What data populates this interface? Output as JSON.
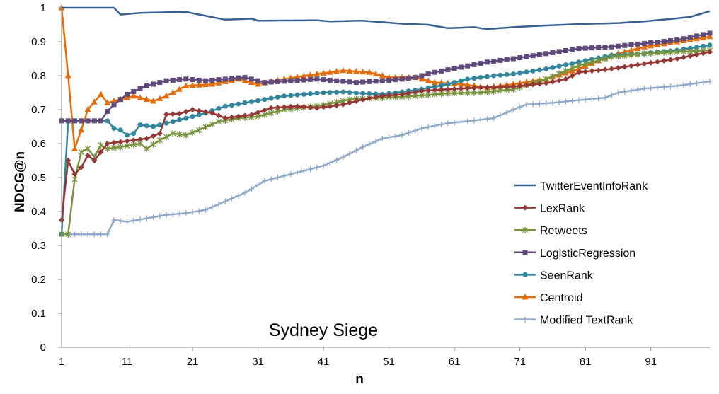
{
  "chart_data": {
    "type": "line",
    "title": "Sydney Siege",
    "xlabel": "n",
    "ylabel": "NDCG@n",
    "xlim": [
      1,
      100
    ],
    "ylim": [
      0,
      1
    ],
    "x_ticks": [
      1,
      11,
      21,
      31,
      41,
      51,
      61,
      71,
      81,
      91
    ],
    "x_tick_labels": [
      "1",
      "11",
      "21",
      "31",
      "41",
      "51",
      "61",
      "71",
      "81",
      "91"
    ],
    "y_ticks": [
      0,
      0.1,
      0.2,
      0.3,
      0.4,
      0.5,
      0.6,
      0.7,
      0.8,
      0.9,
      1
    ],
    "y_tick_labels": [
      "0",
      "0.1",
      "0.2",
      "0.3",
      "0.4",
      "0.5",
      "0.6",
      "0.7",
      "0.8",
      "0.9",
      "1"
    ],
    "grid": false,
    "legend_position": "right",
    "series": [
      {
        "name": "TwitterEventInfoRank",
        "color": "#376092",
        "marker": "none",
        "knots": [
          [
            1,
            1
          ],
          [
            9,
            1
          ],
          [
            10,
            0.98
          ],
          [
            13,
            0.985
          ],
          [
            20,
            0.988
          ],
          [
            22,
            0.98
          ],
          [
            26,
            0.965
          ],
          [
            30,
            0.968
          ],
          [
            31,
            0.962
          ],
          [
            40,
            0.963
          ],
          [
            42,
            0.96
          ],
          [
            47,
            0.962
          ],
          [
            53,
            0.953
          ],
          [
            57,
            0.95
          ],
          [
            60,
            0.94
          ],
          [
            64,
            0.943
          ],
          [
            66,
            0.937
          ],
          [
            70,
            0.943
          ],
          [
            74,
            0.947
          ],
          [
            80,
            0.952
          ],
          [
            86,
            0.955
          ],
          [
            90,
            0.96
          ],
          [
            94,
            0.967
          ],
          [
            97,
            0.973
          ],
          [
            100,
            0.99
          ]
        ]
      },
      {
        "name": "LexRank",
        "color": "#953735",
        "marker": "diamond",
        "knots": [
          [
            1,
            0.375
          ],
          [
            2,
            0.55
          ],
          [
            3,
            0.51
          ],
          [
            4,
            0.53
          ],
          [
            5,
            0.565
          ],
          [
            6,
            0.55
          ],
          [
            7,
            0.575
          ],
          [
            8,
            0.6
          ],
          [
            10,
            0.605
          ],
          [
            12,
            0.61
          ],
          [
            14,
            0.615
          ],
          [
            16,
            0.63
          ],
          [
            17,
            0.686
          ],
          [
            19,
            0.688
          ],
          [
            21,
            0.7
          ],
          [
            24,
            0.69
          ],
          [
            26,
            0.675
          ],
          [
            30,
            0.685
          ],
          [
            33,
            0.705
          ],
          [
            37,
            0.71
          ],
          [
            40,
            0.705
          ],
          [
            44,
            0.715
          ],
          [
            47,
            0.73
          ],
          [
            50,
            0.74
          ],
          [
            53,
            0.745
          ],
          [
            56,
            0.755
          ],
          [
            60,
            0.76
          ],
          [
            65,
            0.765
          ],
          [
            70,
            0.768
          ],
          [
            75,
            0.778
          ],
          [
            78,
            0.79
          ],
          [
            80,
            0.81
          ],
          [
            85,
            0.82
          ],
          [
            90,
            0.835
          ],
          [
            95,
            0.85
          ],
          [
            100,
            0.87
          ]
        ]
      },
      {
        "name": "Retweets",
        "color": "#77933C",
        "marker": "star",
        "knots": [
          [
            1,
            0.333
          ],
          [
            2,
            0.333
          ],
          [
            3,
            0.495
          ],
          [
            4,
            0.575
          ],
          [
            5,
            0.585
          ],
          [
            6,
            0.56
          ],
          [
            7,
            0.595
          ],
          [
            8,
            0.585
          ],
          [
            10,
            0.59
          ],
          [
            13,
            0.6
          ],
          [
            14,
            0.585
          ],
          [
            16,
            0.61
          ],
          [
            18,
            0.63
          ],
          [
            20,
            0.625
          ],
          [
            22,
            0.64
          ],
          [
            25,
            0.665
          ],
          [
            28,
            0.675
          ],
          [
            31,
            0.68
          ],
          [
            35,
            0.7
          ],
          [
            40,
            0.71
          ],
          [
            45,
            0.73
          ],
          [
            50,
            0.735
          ],
          [
            55,
            0.74
          ],
          [
            60,
            0.748
          ],
          [
            65,
            0.75
          ],
          [
            70,
            0.76
          ],
          [
            75,
            0.79
          ],
          [
            80,
            0.83
          ],
          [
            85,
            0.855
          ],
          [
            90,
            0.865
          ],
          [
            95,
            0.87
          ],
          [
            100,
            0.875
          ]
        ]
      },
      {
        "name": "LogisticRegression",
        "color": "#604A7B",
        "marker": "square",
        "knots": [
          [
            1,
            0.667
          ],
          [
            7,
            0.667
          ],
          [
            8,
            0.695
          ],
          [
            9,
            0.715
          ],
          [
            11,
            0.745
          ],
          [
            14,
            0.77
          ],
          [
            17,
            0.785
          ],
          [
            20,
            0.79
          ],
          [
            23,
            0.785
          ],
          [
            26,
            0.79
          ],
          [
            29,
            0.795
          ],
          [
            32,
            0.78
          ],
          [
            36,
            0.785
          ],
          [
            40,
            0.79
          ],
          [
            43,
            0.785
          ],
          [
            46,
            0.78
          ],
          [
            50,
            0.785
          ],
          [
            53,
            0.79
          ],
          [
            55,
            0.795
          ],
          [
            58,
            0.81
          ],
          [
            62,
            0.825
          ],
          [
            66,
            0.84
          ],
          [
            70,
            0.85
          ],
          [
            75,
            0.865
          ],
          [
            80,
            0.88
          ],
          [
            85,
            0.885
          ],
          [
            90,
            0.895
          ],
          [
            95,
            0.905
          ],
          [
            100,
            0.925
          ]
        ]
      },
      {
        "name": "SeenRank",
        "color": "#31859C",
        "marker": "circle",
        "knots": [
          [
            1,
            0.333
          ],
          [
            2,
            0.667
          ],
          [
            8,
            0.667
          ],
          [
            9,
            0.645
          ],
          [
            10,
            0.64
          ],
          [
            11,
            0.625
          ],
          [
            12,
            0.63
          ],
          [
            13,
            0.655
          ],
          [
            15,
            0.65
          ],
          [
            17,
            0.66
          ],
          [
            20,
            0.675
          ],
          [
            23,
            0.69
          ],
          [
            26,
            0.71
          ],
          [
            29,
            0.72
          ],
          [
            32,
            0.73
          ],
          [
            35,
            0.74
          ],
          [
            38,
            0.745
          ],
          [
            41,
            0.75
          ],
          [
            44,
            0.752
          ],
          [
            47,
            0.748
          ],
          [
            50,
            0.745
          ],
          [
            53,
            0.752
          ],
          [
            56,
            0.76
          ],
          [
            60,
            0.775
          ],
          [
            63,
            0.79
          ],
          [
            67,
            0.8
          ],
          [
            70,
            0.805
          ],
          [
            75,
            0.82
          ],
          [
            80,
            0.84
          ],
          [
            85,
            0.86
          ],
          [
            90,
            0.865
          ],
          [
            95,
            0.875
          ],
          [
            100,
            0.89
          ]
        ]
      },
      {
        "name": "Centroid",
        "color": "#E46C0A",
        "marker": "triangle",
        "knots": [
          [
            1,
            1
          ],
          [
            2,
            0.8
          ],
          [
            3,
            0.585
          ],
          [
            4,
            0.64
          ],
          [
            5,
            0.7
          ],
          [
            7,
            0.745
          ],
          [
            8,
            0.72
          ],
          [
            10,
            0.73
          ],
          [
            12,
            0.74
          ],
          [
            15,
            0.725
          ],
          [
            17,
            0.74
          ],
          [
            20,
            0.77
          ],
          [
            24,
            0.775
          ],
          [
            28,
            0.79
          ],
          [
            31,
            0.775
          ],
          [
            35,
            0.79
          ],
          [
            40,
            0.805
          ],
          [
            44,
            0.815
          ],
          [
            48,
            0.81
          ],
          [
            51,
            0.795
          ],
          [
            55,
            0.795
          ],
          [
            58,
            0.78
          ],
          [
            62,
            0.775
          ],
          [
            66,
            0.765
          ],
          [
            70,
            0.775
          ],
          [
            75,
            0.79
          ],
          [
            80,
            0.82
          ],
          [
            85,
            0.86
          ],
          [
            90,
            0.885
          ],
          [
            95,
            0.9
          ],
          [
            100,
            0.915
          ]
        ]
      },
      {
        "name": "Modified TextRank",
        "color": "#8EA9C9",
        "marker": "plus",
        "knots": [
          [
            1,
            0.333
          ],
          [
            8,
            0.333
          ],
          [
            9,
            0.375
          ],
          [
            11,
            0.37
          ],
          [
            14,
            0.38
          ],
          [
            17,
            0.39
          ],
          [
            20,
            0.395
          ],
          [
            23,
            0.405
          ],
          [
            26,
            0.43
          ],
          [
            29,
            0.455
          ],
          [
            32,
            0.49
          ],
          [
            35,
            0.505
          ],
          [
            38,
            0.52
          ],
          [
            41,
            0.535
          ],
          [
            44,
            0.56
          ],
          [
            47,
            0.59
          ],
          [
            50,
            0.615
          ],
          [
            53,
            0.625
          ],
          [
            56,
            0.645
          ],
          [
            60,
            0.66
          ],
          [
            64,
            0.668
          ],
          [
            67,
            0.675
          ],
          [
            70,
            0.7
          ],
          [
            72,
            0.715
          ],
          [
            76,
            0.72
          ],
          [
            80,
            0.728
          ],
          [
            84,
            0.735
          ],
          [
            86,
            0.75
          ],
          [
            90,
            0.762
          ],
          [
            95,
            0.77
          ],
          [
            100,
            0.783
          ]
        ]
      }
    ]
  }
}
